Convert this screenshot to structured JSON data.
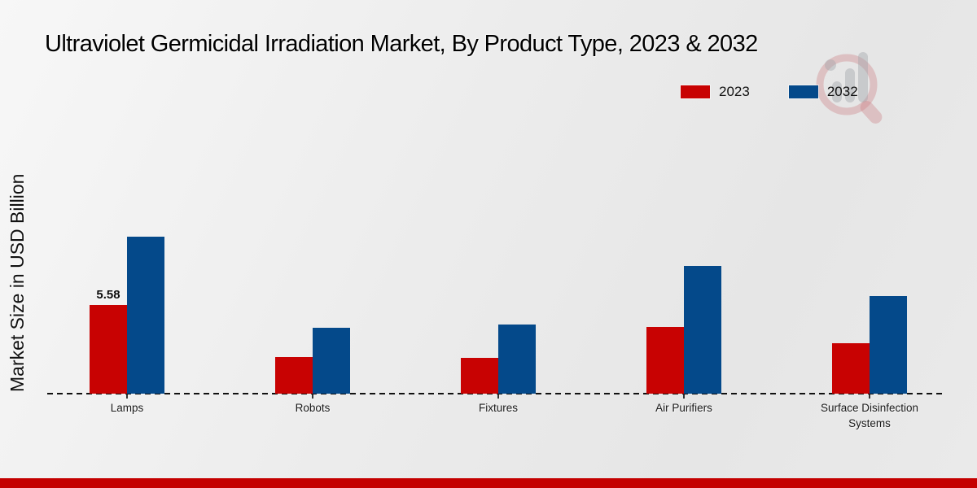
{
  "title": "Ultraviolet Germicidal Irradiation Market, By Product Type, 2023 & 2032",
  "y_axis_label": "Market Size in USD Billion",
  "legend": [
    {
      "label": "2023",
      "color": "#c80202"
    },
    {
      "label": "2032",
      "color": "#04498a"
    }
  ],
  "watermark_icon": "market-research-magnifier-logo",
  "footer_bar": {
    "color": "#c40000"
  },
  "chart_data": {
    "type": "bar",
    "title": "Ultraviolet Germicidal Irradiation Market, By Product Type, 2023 & 2032",
    "xlabel": "",
    "ylabel": "Market Size in USD Billion",
    "categories": [
      "Lamps",
      "Robots",
      "Fixtures",
      "Air Purifiers",
      "Surface Disinfection Systems"
    ],
    "series": [
      {
        "name": "2023",
        "color": "#c80202",
        "values": [
          5.58,
          2.3,
          2.25,
          4.2,
          3.2
        ]
      },
      {
        "name": "2032",
        "color": "#04498a",
        "values": [
          9.88,
          4.15,
          4.35,
          8.05,
          6.15
        ]
      }
    ],
    "annotations": [
      {
        "category": "Lamps",
        "series": "2023",
        "text": "5.58"
      }
    ],
    "ylim": [
      0,
      10.5
    ],
    "grid": false,
    "y_tick_labels_visible": false,
    "baseline_style": "dashed",
    "legend_position": "top-right"
  }
}
